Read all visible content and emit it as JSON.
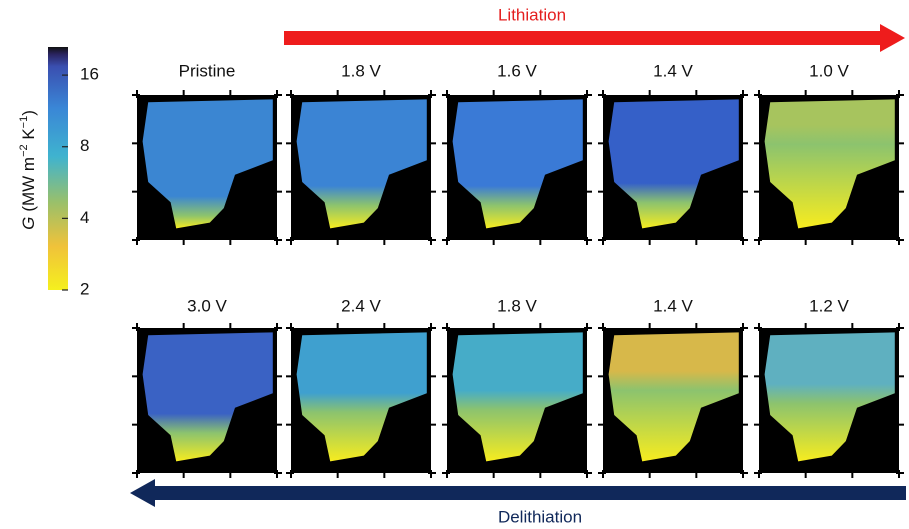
{
  "colorbar": {
    "label_parts": [
      "G",
      "(MW m",
      "−2",
      " K",
      "−1",
      ")"
    ],
    "lim": [
      2,
      21
    ],
    "ticks": [
      2,
      4,
      8,
      16
    ],
    "log_scale": true
  },
  "lithiation": {
    "label": "Lithiation",
    "panels": [
      "Pristine",
      "1.8 V",
      "1.6 V",
      "1.4 V",
      "1.0 V"
    ]
  },
  "delithiation": {
    "label": "Delithiation",
    "panels": [
      "3.0 V",
      "2.4 V",
      "1.8 V",
      "1.4 V",
      "1.2 V"
    ]
  }
}
